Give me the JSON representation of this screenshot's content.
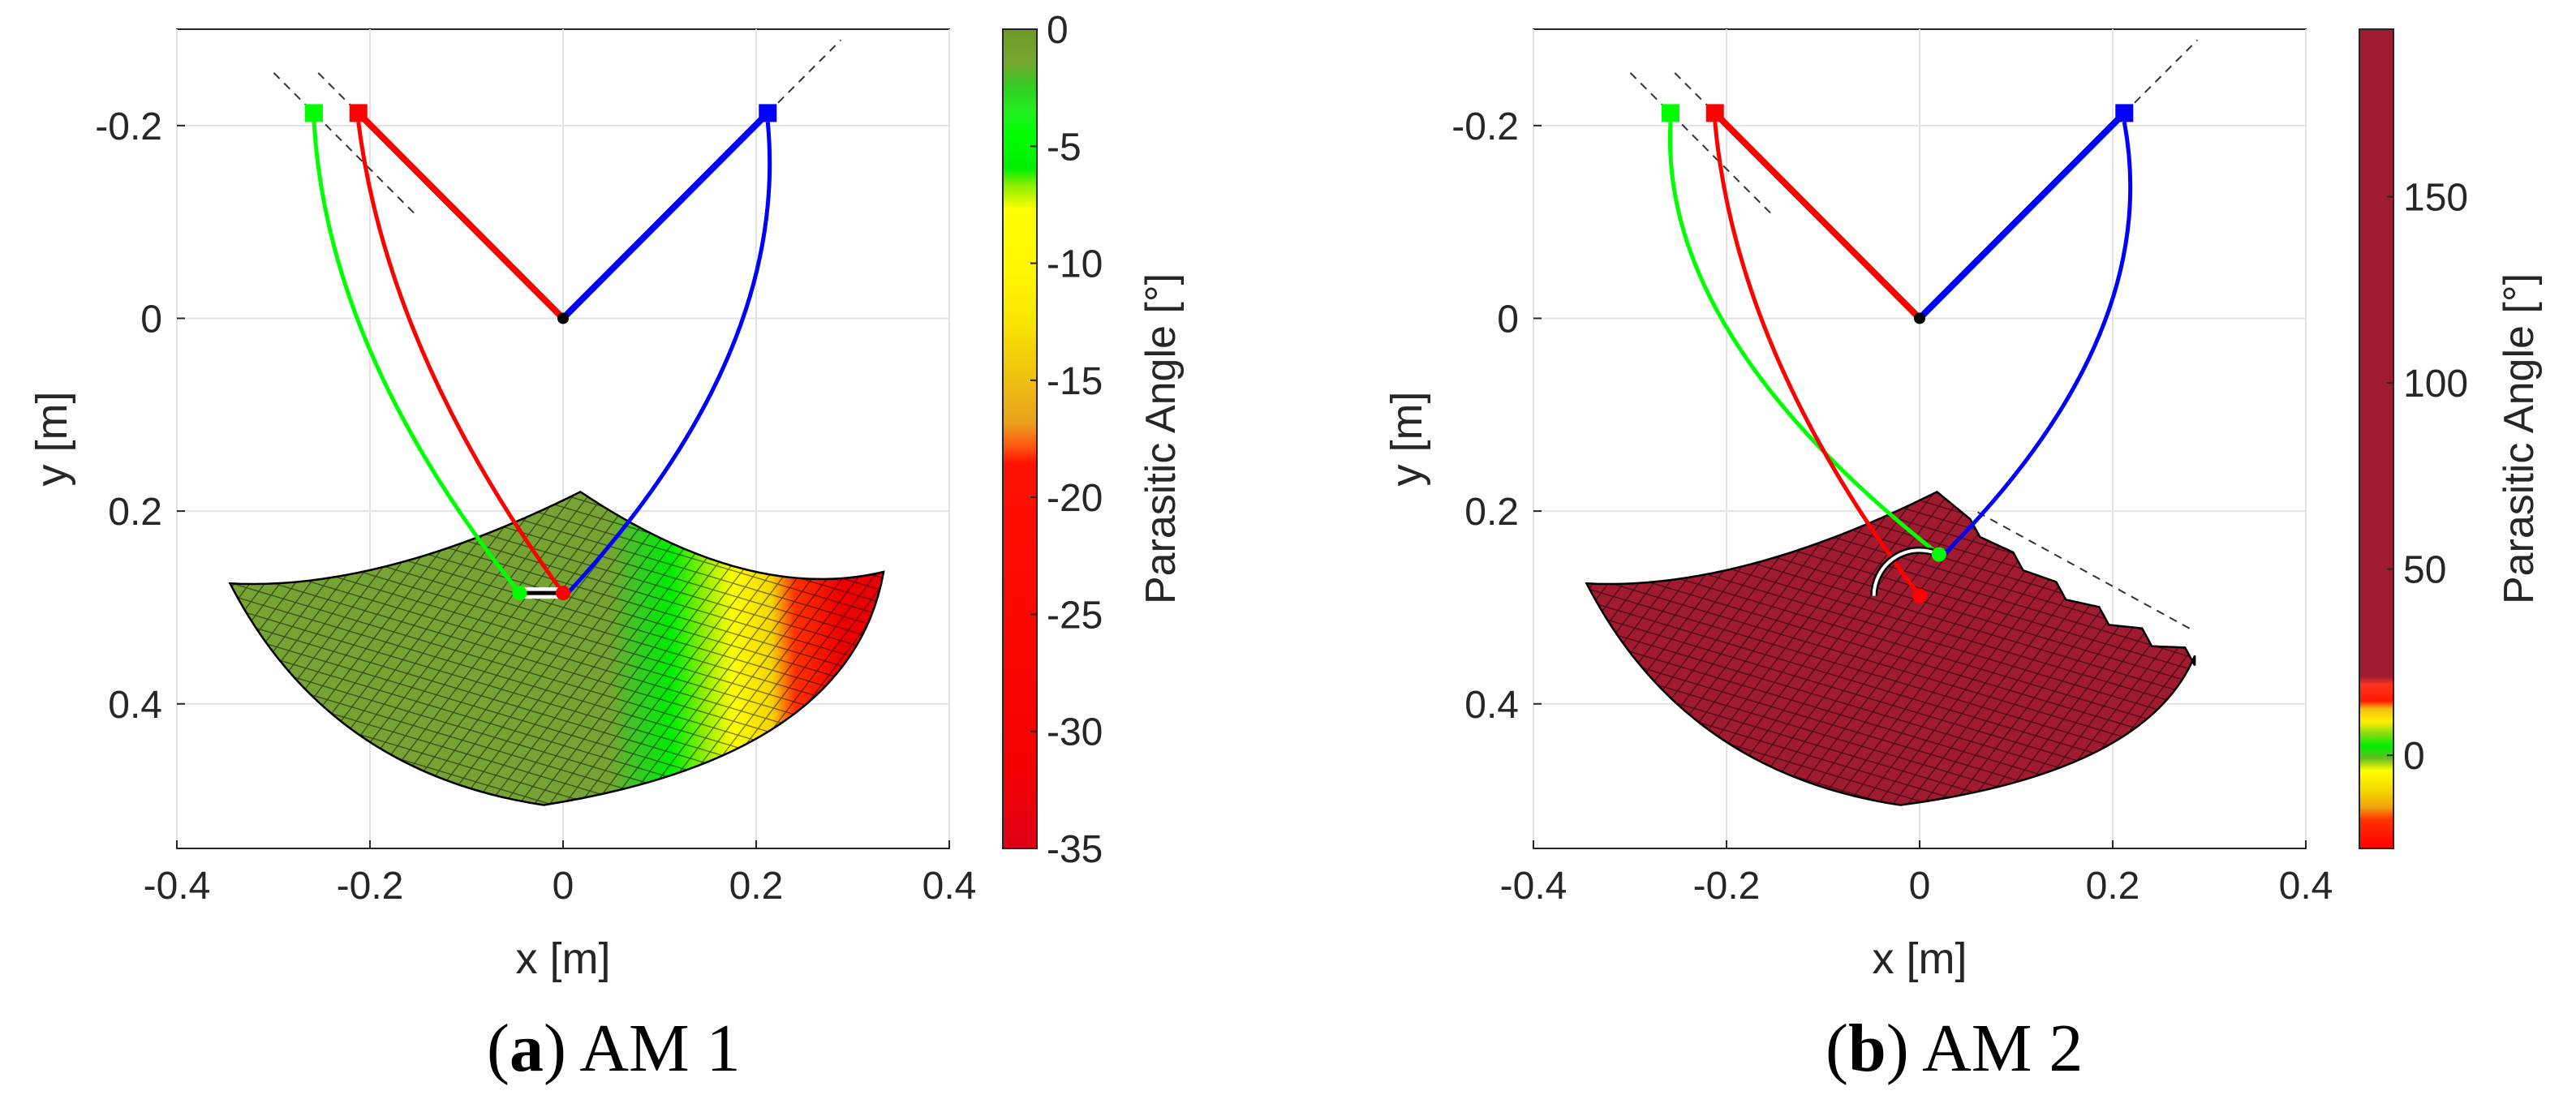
{
  "chart_data": [
    {
      "type": "scatter",
      "panel_letter": "a",
      "caption_text": "AM 1",
      "xlabel": "x [m]",
      "ylabel": "y [m]",
      "colorbar_label": "Parasitic Angle [°]",
      "xlim": [
        -0.4,
        0.4
      ],
      "ylim": [
        -0.3,
        0.55
      ],
      "y_axis_reversed": true,
      "xticks": [
        -0.4,
        -0.2,
        0,
        0.2,
        0.4
      ],
      "xtick_labels": [
        "-0.4",
        "-0.2",
        "0",
        "0.2",
        "0.4"
      ],
      "yticks": [
        -0.2,
        0,
        0.2,
        0.4
      ],
      "ytick_labels": [
        "-0.2",
        "0",
        "0.2",
        "0.4"
      ],
      "colorbar_range": [
        -35,
        0
      ],
      "colorbar_ticks": [
        0,
        -5,
        -10,
        -15,
        -20,
        -25,
        -30,
        -35
      ],
      "colorbar_tick_labels": [
        "0",
        "-5",
        "-10",
        "-15",
        "-20",
        "-25",
        "-30",
        "-35"
      ],
      "colors": {
        "green": "#00ff00",
        "red": "#ff0000",
        "blue": "#0000ff",
        "workspace": "#7aa534"
      },
      "anchors": {
        "green": [
          -0.258,
          -0.213
        ],
        "red": [
          -0.212,
          -0.213
        ],
        "blue": [
          0.212,
          -0.213
        ]
      },
      "base_point": [
        0,
        0
      ],
      "end_effector_red": [
        0,
        0.285
      ],
      "end_effector_green": [
        -0.045,
        0.285
      ],
      "workspace_boundary": {
        "top_apex": [
          0.018,
          0.18
        ],
        "left_corner": [
          -0.345,
          0.275
        ],
        "right_corner": [
          0.332,
          0.263
        ],
        "bottom": [
          -0.02,
          0.505
        ]
      },
      "color_gradient_x": [
        0.0,
        0.08,
        0.12,
        0.17,
        0.22,
        0.33
      ],
      "color_gradient_values": [
        0,
        -2,
        -5,
        -10,
        -17,
        -33
      ]
    },
    {
      "type": "scatter",
      "panel_letter": "b",
      "caption_text": "AM 2",
      "xlabel": "x [m]",
      "ylabel": "y [m]",
      "colorbar_label": "Parasitic Angle [°]",
      "xlim": [
        -0.4,
        0.4
      ],
      "ylim": [
        -0.3,
        0.55
      ],
      "y_axis_reversed": true,
      "xticks": [
        -0.4,
        -0.2,
        0,
        0.2,
        0.4
      ],
      "xtick_labels": [
        "-0.4",
        "-0.2",
        "0",
        "0.2",
        "0.4"
      ],
      "yticks": [
        -0.2,
        0,
        0.2,
        0.4
      ],
      "ytick_labels": [
        "-0.2",
        "0",
        "0.2",
        "0.4"
      ],
      "colorbar_range": [
        -25,
        195
      ],
      "colorbar_ticks": [
        150,
        100,
        50,
        0
      ],
      "colorbar_tick_labels": [
        "150",
        "100",
        "50",
        "0"
      ],
      "colors": {
        "green": "#00ff00",
        "red": "#ff0000",
        "blue": "#0000ff",
        "workspace": "#a01a30"
      },
      "anchors": {
        "green": [
          -0.258,
          -0.213
        ],
        "red": [
          -0.212,
          -0.213
        ],
        "blue": [
          0.212,
          -0.213
        ]
      },
      "base_point": [
        0,
        0
      ],
      "end_effector_red": [
        0,
        0.288
      ],
      "end_effector_green": [
        0.02,
        0.245
      ],
      "workspace_boundary": {
        "top_apex": [
          0.018,
          0.18
        ],
        "left_corner": [
          -0.345,
          0.275
        ],
        "right_corner": [
          0.285,
          0.35
        ],
        "bottom": [
          -0.02,
          0.505
        ]
      },
      "workspace_value": 190
    }
  ]
}
